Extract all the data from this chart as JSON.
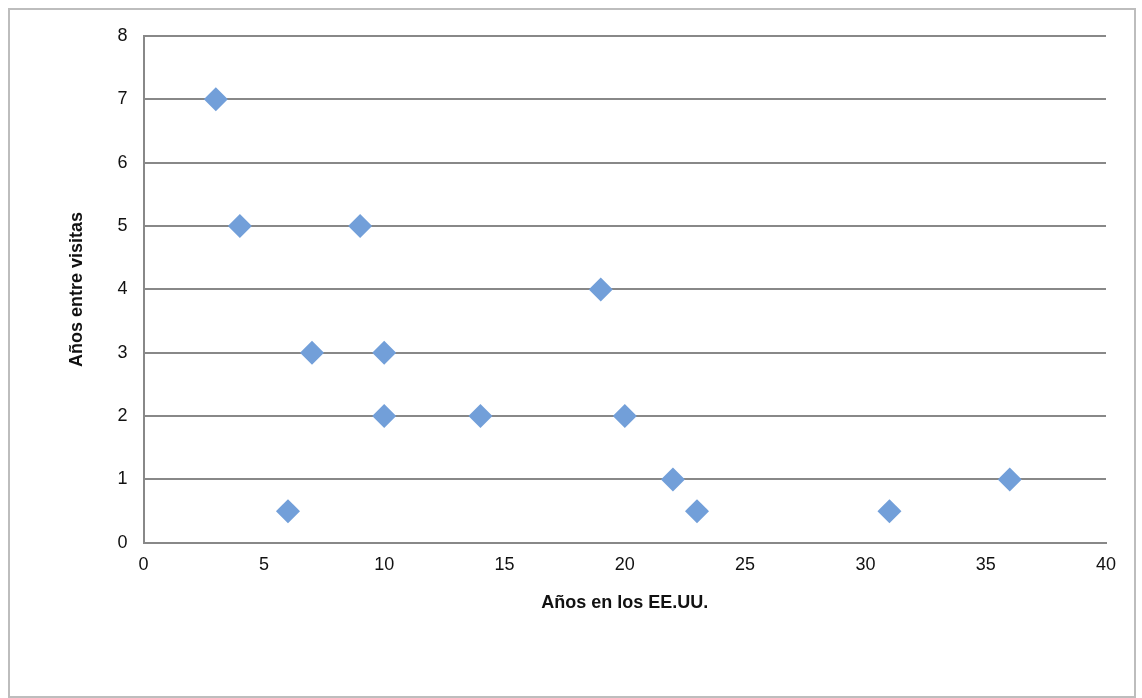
{
  "chart_data": {
    "type": "scatter",
    "xlabel": "Años en los EE.UU.",
    "ylabel": "Años entre visitas",
    "x": [
      3,
      4,
      9,
      19,
      7,
      10,
      10,
      14,
      20,
      22,
      36,
      6,
      23,
      31
    ],
    "values": [
      7,
      5,
      5,
      4,
      3,
      3,
      2,
      2,
      2,
      1,
      1,
      0.5,
      0.5,
      0.5
    ],
    "color": "#729fd9",
    "xlim": [
      0,
      40
    ],
    "xticks": [
      0,
      5,
      10,
      15,
      20,
      25,
      30,
      35,
      40
    ],
    "ylim": [
      0,
      8
    ],
    "yticks": [
      0,
      1,
      2,
      3,
      4,
      5,
      6,
      7,
      8
    ],
    "grid": "y",
    "marker": "diamond",
    "legend": false
  }
}
